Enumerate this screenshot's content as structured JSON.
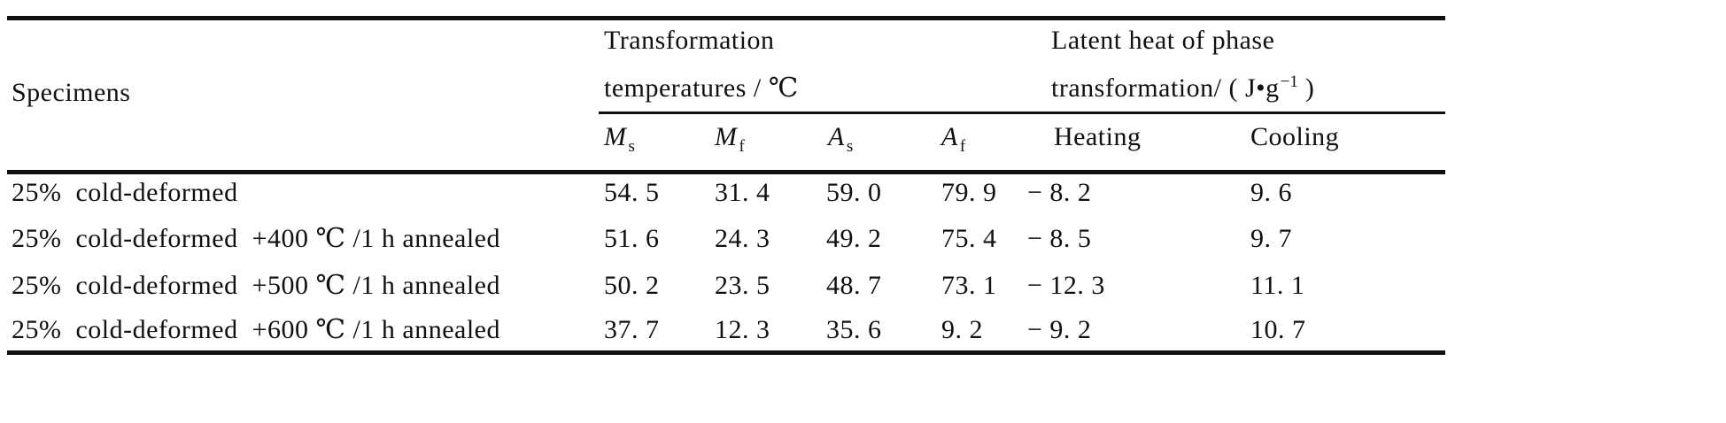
{
  "colors": {
    "ink": "#101010",
    "background": "#ffffff"
  },
  "table": {
    "specimens_header": "Specimens",
    "groups": {
      "transformation": {
        "line1": "Transformation",
        "line2": "temperatures / ℃"
      },
      "latent": {
        "line1": "Latent heat of phase",
        "line2_prefix": "transformation/ ( J•g",
        "line2_sup": "−1",
        "line2_suffix": " )"
      }
    },
    "subheaders": {
      "ms": {
        "base": "M",
        "sub": "s"
      },
      "mf": {
        "base": "M",
        "sub": "f"
      },
      "as": {
        "base": "A",
        "sub": "s"
      },
      "af": {
        "base": "A",
        "sub": "f"
      },
      "heating": "Heating",
      "cooling": "Cooling"
    },
    "rows": [
      {
        "specimen": "25%  cold-deformed",
        "ms": "54. 5",
        "mf": "31. 4",
        "as": "59. 0",
        "af": "79. 9",
        "heating": "− 8. 2",
        "cooling": "9. 6"
      },
      {
        "specimen": "25%  cold-deformed  +400 ℃ /1 h annealed",
        "ms": "51. 6",
        "mf": "24. 3",
        "as": "49. 2",
        "af": "75. 4",
        "heating": "− 8. 5",
        "cooling": "9. 7"
      },
      {
        "specimen": "25%  cold-deformed  +500 ℃ /1 h annealed",
        "ms": "50. 2",
        "mf": "23. 5",
        "as": "48. 7",
        "af": "73. 1",
        "heating": "− 12. 3",
        "cooling": "11. 1"
      },
      {
        "specimen": "25%  cold-deformed  +600 ℃ /1 h annealed",
        "ms": "37. 7",
        "mf": "12. 3",
        "as": "35. 6",
        "af": "9. 2",
        "heating": "− 9. 2",
        "cooling": "10. 7"
      }
    ]
  }
}
